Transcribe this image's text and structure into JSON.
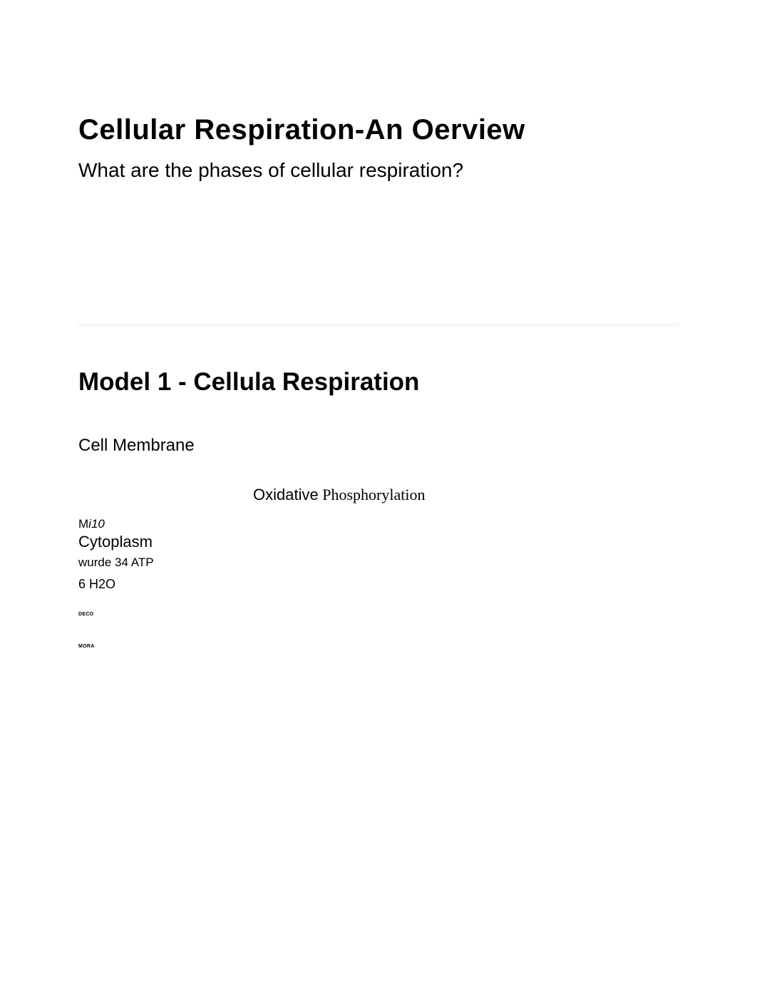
{
  "header": {
    "title_part1": "Cellular Respirati",
    "title_part2": "on-An ",
    "title_part3": "Oerview",
    "subtitle": "What are the phases of cellular respiration?"
  },
  "section": {
    "title_part1": "Model 1 - Ce",
    "title_part2": "llula",
    "title_part3": " Respirat",
    "title_part4": "ion"
  },
  "labels": {
    "cell_membrane": "Cell Membrane",
    "oxphos_part1": "Oxidative",
    "oxphos_part2": " Phosphorylation",
    "mi_prefix": "M",
    "mi_italic": "i10",
    "cytoplasm": "Cytoplasm",
    "atp_prefix": "wurde ",
    "atp_num": "3",
    "atp_suffix": "4 ATP",
    "h2o": "6 H2O",
    "tiny1": "DECO",
    "tiny2": "MORA"
  },
  "colors": {
    "background": "#ffffff",
    "text": "#000000"
  }
}
